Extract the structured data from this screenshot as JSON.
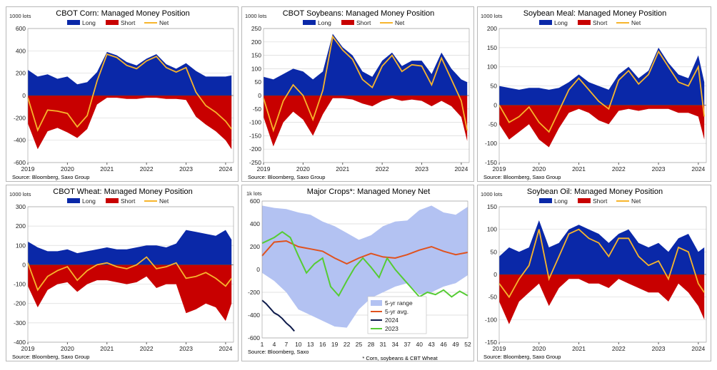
{
  "colors": {
    "long": "#0a28a8",
    "short": "#c80000",
    "net": "#f7b52c",
    "range": "#b3c2f2",
    "avg": "#e0521e",
    "y2024": "#0d1a4a",
    "y2023": "#55cc33",
    "grid": "#d9d9d9"
  },
  "chart_data": [
    {
      "id": "corn",
      "type": "area",
      "title": "CBOT Corn: Managed Money Position",
      "units": "1000 lots",
      "source": "Source: Bloomberg, Saxo Group",
      "legend": [
        "Long",
        "Short",
        "Net"
      ],
      "legend_position": "top",
      "ylim": [
        -600,
        600
      ],
      "yticks": [
        -600,
        -400,
        -200,
        0,
        200,
        400,
        600
      ],
      "xlim": [
        2019,
        2024.2
      ],
      "xticks": [
        "2019",
        "2020",
        "2021",
        "2022",
        "2023",
        "2024"
      ],
      "x": [
        2019.0,
        2019.25,
        2019.5,
        2019.75,
        2020.0,
        2020.25,
        2020.5,
        2020.75,
        2021.0,
        2021.25,
        2021.5,
        2021.75,
        2022.0,
        2022.25,
        2022.5,
        2022.75,
        2023.0,
        2023.25,
        2023.5,
        2023.75,
        2024.0,
        2024.15
      ],
      "series": [
        {
          "name": "Long",
          "values": [
            230,
            170,
            190,
            150,
            170,
            100,
            120,
            210,
            390,
            360,
            300,
            270,
            330,
            370,
            280,
            240,
            290,
            220,
            170,
            170,
            170,
            180
          ]
        },
        {
          "name": "Short",
          "values": [
            -250,
            -480,
            -320,
            -290,
            -330,
            -380,
            -300,
            -80,
            -20,
            -20,
            -30,
            -30,
            -20,
            -20,
            -30,
            -30,
            -40,
            -190,
            -260,
            -320,
            -400,
            -480
          ]
        },
        {
          "name": "Net",
          "values": [
            -20,
            -310,
            -130,
            -140,
            -160,
            -280,
            -180,
            130,
            370,
            340,
            270,
            240,
            310,
            350,
            250,
            210,
            250,
            30,
            -90,
            -150,
            -230,
            -300
          ]
        }
      ]
    },
    {
      "id": "soy",
      "type": "area",
      "title": "CBOT Soybeans: Managed Money Position",
      "units": "1000 lots",
      "source": "Source: Bloomberg, Saxo Group",
      "legend": [
        "Long",
        "Short",
        "Net"
      ],
      "legend_position": "top",
      "ylim": [
        -250,
        250
      ],
      "yticks": [
        -250,
        -200,
        -150,
        -100,
        -50,
        0,
        50,
        100,
        150,
        200,
        250
      ],
      "xlim": [
        2019,
        2024.2
      ],
      "xticks": [
        "2019",
        "2020",
        "2021",
        "2022",
        "2023",
        "2024"
      ],
      "x": [
        2019.0,
        2019.25,
        2019.5,
        2019.75,
        2020.0,
        2020.25,
        2020.5,
        2020.75,
        2021.0,
        2021.25,
        2021.5,
        2021.75,
        2022.0,
        2022.25,
        2022.5,
        2022.75,
        2023.0,
        2023.25,
        2023.5,
        2023.75,
        2024.0,
        2024.15
      ],
      "series": [
        {
          "name": "Long",
          "values": [
            70,
            60,
            80,
            100,
            90,
            60,
            90,
            230,
            180,
            150,
            90,
            70,
            130,
            160,
            110,
            130,
            130,
            80,
            160,
            100,
            60,
            50
          ]
        },
        {
          "name": "Short",
          "values": [
            -80,
            -190,
            -100,
            -60,
            -90,
            -150,
            -70,
            -10,
            -10,
            -15,
            -30,
            -40,
            -20,
            -10,
            -20,
            -15,
            -20,
            -40,
            -20,
            -40,
            -80,
            -170
          ]
        },
        {
          "name": "Net",
          "values": [
            -10,
            -130,
            -20,
            40,
            0,
            -90,
            20,
            220,
            170,
            135,
            60,
            30,
            110,
            150,
            90,
            115,
            110,
            40,
            140,
            60,
            -20,
            -130
          ]
        }
      ]
    },
    {
      "id": "meal",
      "type": "area",
      "title": "Soybean Meal: Managed Money Position",
      "units": "1000 lots",
      "source": "Source: Bloomberg, Saxo Group",
      "legend": [
        "Long",
        "Short",
        "Net"
      ],
      "legend_position": "top",
      "ylim": [
        -150,
        200
      ],
      "yticks": [
        -150,
        -100,
        -50,
        0,
        50,
        100,
        150,
        200
      ],
      "xlim": [
        2019,
        2024.2
      ],
      "xticks": [
        "2019",
        "2020",
        "2021",
        "2022",
        "2023",
        "2024"
      ],
      "x": [
        2019.0,
        2019.25,
        2019.5,
        2019.75,
        2020.0,
        2020.25,
        2020.5,
        2020.75,
        2021.0,
        2021.25,
        2021.5,
        2021.75,
        2022.0,
        2022.25,
        2022.5,
        2022.75,
        2023.0,
        2023.25,
        2023.5,
        2023.75,
        2024.0,
        2024.15
      ],
      "series": [
        {
          "name": "Long",
          "values": [
            50,
            45,
            40,
            45,
            45,
            40,
            45,
            60,
            80,
            60,
            50,
            40,
            80,
            100,
            70,
            90,
            150,
            110,
            80,
            70,
            130,
            60
          ]
        },
        {
          "name": "Short",
          "values": [
            -50,
            -90,
            -70,
            -50,
            -90,
            -110,
            -60,
            -20,
            -10,
            -20,
            -40,
            -50,
            -15,
            -10,
            -15,
            -10,
            -10,
            -10,
            -20,
            -20,
            -30,
            -90
          ]
        },
        {
          "name": "Net",
          "values": [
            0,
            -45,
            -30,
            -5,
            -45,
            -70,
            -15,
            40,
            70,
            40,
            10,
            -10,
            65,
            90,
            55,
            80,
            140,
            100,
            60,
            50,
            100,
            -30
          ]
        }
      ]
    },
    {
      "id": "wheat",
      "type": "area",
      "title": "CBOT Wheat: Managed Money Position",
      "units": "1000 lots",
      "source": "Source: Bloomberg, Saxo Group",
      "legend": [
        "Long",
        "Short",
        "Net"
      ],
      "legend_position": "top",
      "ylim": [
        -400,
        300
      ],
      "yticks": [
        -400,
        -300,
        -200,
        -100,
        0,
        100,
        200,
        300
      ],
      "xlim": [
        2019,
        2024.2
      ],
      "xticks": [
        "2019",
        "2020",
        "2021",
        "2022",
        "2023",
        "2024"
      ],
      "x": [
        2019.0,
        2019.25,
        2019.5,
        2019.75,
        2020.0,
        2020.25,
        2020.5,
        2020.75,
        2021.0,
        2021.25,
        2021.5,
        2021.75,
        2022.0,
        2022.25,
        2022.5,
        2022.75,
        2023.0,
        2023.25,
        2023.5,
        2023.75,
        2024.0,
        2024.15
      ],
      "series": [
        {
          "name": "Long",
          "values": [
            120,
            90,
            70,
            70,
            80,
            60,
            70,
            80,
            90,
            80,
            80,
            90,
            100,
            100,
            90,
            110,
            180,
            170,
            160,
            150,
            180,
            130
          ]
        },
        {
          "name": "Short",
          "values": [
            -110,
            -220,
            -130,
            -100,
            -90,
            -140,
            -100,
            -80,
            -80,
            -90,
            -100,
            -90,
            -60,
            -120,
            -100,
            -100,
            -250,
            -230,
            -200,
            -220,
            -290,
            -200
          ]
        },
        {
          "name": "Net",
          "values": [
            10,
            -130,
            -60,
            -30,
            -10,
            -80,
            -30,
            0,
            10,
            -10,
            -20,
            0,
            40,
            -20,
            -10,
            10,
            -70,
            -60,
            -40,
            -70,
            -110,
            -70
          ]
        }
      ]
    },
    {
      "id": "major",
      "type": "line",
      "title": "Major Crops*: Managed Money Net",
      "units": "1k lots",
      "source": "Source: Bloomberg, Saxo",
      "footnote": "* Corn, soybeans & CBT Wheat",
      "legend": [
        "5-yr range",
        "5-yr avg.",
        "2024",
        "2023"
      ],
      "legend_position": "bottom-right",
      "ylim": [
        -600,
        600
      ],
      "yticks": [
        -600,
        -400,
        -200,
        0,
        200,
        400,
        600
      ],
      "xlim": [
        1,
        52
      ],
      "xticks": [
        "1",
        "4",
        "7",
        "10",
        "13",
        "16",
        "19",
        "22",
        "25",
        "28",
        "31",
        "34",
        "37",
        "40",
        "43",
        "46",
        "49",
        "52"
      ],
      "range_x": [
        1,
        4,
        7,
        10,
        13,
        16,
        19,
        22,
        25,
        28,
        31,
        34,
        37,
        40,
        43,
        46,
        49,
        52
      ],
      "range_low": [
        -30,
        -100,
        -200,
        -350,
        -400,
        -450,
        -500,
        -510,
        -350,
        -250,
        -200,
        -150,
        -120,
        -220,
        -200,
        -150,
        -120,
        -50
      ],
      "range_high": [
        560,
        540,
        530,
        500,
        480,
        420,
        380,
        320,
        260,
        300,
        380,
        420,
        430,
        520,
        560,
        500,
        480,
        550
      ],
      "series": [
        {
          "name": "5-yr avg.",
          "x": [
            1,
            4,
            7,
            10,
            13,
            16,
            19,
            22,
            25,
            28,
            31,
            34,
            37,
            40,
            43,
            46,
            49,
            52
          ],
          "values": [
            120,
            240,
            250,
            200,
            180,
            160,
            100,
            50,
            100,
            140,
            110,
            100,
            130,
            170,
            200,
            160,
            130,
            150
          ]
        },
        {
          "name": "2024",
          "x": [
            1,
            2,
            3,
            4,
            5,
            6,
            7,
            8,
            9
          ],
          "values": [
            -270,
            -300,
            -340,
            -380,
            -400,
            -430,
            -470,
            -500,
            -540
          ]
        },
        {
          "name": "2023",
          "x": [
            1,
            4,
            6,
            8,
            10,
            12,
            14,
            16,
            18,
            20,
            22,
            24,
            26,
            28,
            30,
            32,
            34,
            36,
            38,
            40,
            42,
            44,
            46,
            48,
            50,
            52
          ],
          "values": [
            230,
            280,
            330,
            280,
            120,
            -30,
            50,
            100,
            -150,
            -230,
            -100,
            20,
            100,
            20,
            -70,
            100,
            0,
            -80,
            -160,
            -240,
            -200,
            -220,
            -180,
            -240,
            -190,
            -230
          ]
        }
      ]
    },
    {
      "id": "oil",
      "type": "area",
      "title": "Soybean Oil: Managed Money Position",
      "units": "1000 lots",
      "source": "Source: Bloomberg, Saxo Group",
      "legend": [
        "Long",
        "Short",
        "Net"
      ],
      "legend_position": "top",
      "ylim": [
        -150,
        150
      ],
      "yticks": [
        -150,
        -100,
        -50,
        0,
        50,
        100,
        150
      ],
      "xlim": [
        2019,
        2024.2
      ],
      "xticks": [
        "2019",
        "2020",
        "2021",
        "2022",
        "2023",
        "2024"
      ],
      "x": [
        2019.0,
        2019.25,
        2019.5,
        2019.75,
        2020.0,
        2020.25,
        2020.5,
        2020.75,
        2021.0,
        2021.25,
        2021.5,
        2021.75,
        2022.0,
        2022.25,
        2022.5,
        2022.75,
        2023.0,
        2023.25,
        2023.5,
        2023.75,
        2024.0,
        2024.15
      ],
      "series": [
        {
          "name": "Long",
          "values": [
            40,
            60,
            50,
            60,
            120,
            60,
            70,
            100,
            110,
            100,
            90,
            70,
            90,
            100,
            70,
            60,
            70,
            50,
            80,
            90,
            50,
            60
          ]
        },
        {
          "name": "Short",
          "values": [
            -60,
            -110,
            -60,
            -40,
            -20,
            -70,
            -30,
            -10,
            -10,
            -20,
            -20,
            -30,
            -10,
            -20,
            -30,
            -40,
            -40,
            -60,
            -20,
            -40,
            -70,
            -100
          ]
        },
        {
          "name": "Net",
          "values": [
            -20,
            -50,
            -10,
            20,
            100,
            -10,
            40,
            90,
            100,
            80,
            70,
            40,
            80,
            80,
            40,
            20,
            30,
            -10,
            60,
            50,
            -20,
            -40
          ]
        }
      ]
    }
  ]
}
